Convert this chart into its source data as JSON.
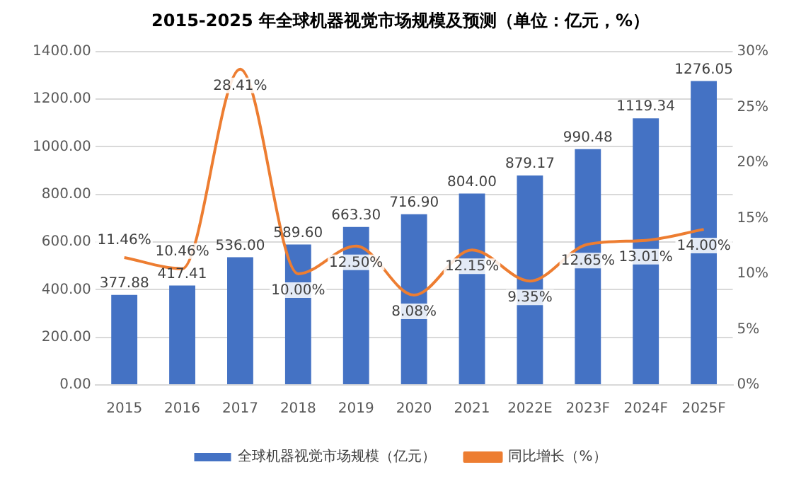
{
  "chart_data": {
    "type": "bar",
    "title": "2015-2025 年全球机器视觉市场规模及预测（单位：亿元，%）",
    "categories": [
      "2015",
      "2016",
      "2017",
      "2018",
      "2019",
      "2020",
      "2021",
      "2022E",
      "2023F",
      "2024F",
      "2025F"
    ],
    "series": [
      {
        "name": "全球机器视觉市场规模（亿元）",
        "color": "#4472c4",
        "values": [
          377.88,
          417.41,
          536.0,
          589.6,
          663.3,
          716.9,
          804.0,
          879.17,
          990.48,
          1119.34,
          1276.05
        ],
        "value_labels": [
          "377.88",
          "417.41",
          "536.00",
          "589.60",
          "663.30",
          "716.90",
          "804.00",
          "879.17",
          "990.48",
          "1119.34",
          "1276.05"
        ]
      },
      {
        "name": "同比增长（%）",
        "type": "line",
        "axis": "y2",
        "color": "#ed7d31",
        "marker": "none",
        "values": [
          11.46,
          10.46,
          28.41,
          10.0,
          12.5,
          8.08,
          12.15,
          9.35,
          12.65,
          13.01,
          14.0
        ],
        "value_labels": [
          "11.46%",
          "10.46%",
          "28.41%",
          "10.00%",
          "12.50%",
          "8.08%",
          "12.15%",
          "9.35%",
          "12.65%",
          "13.01%",
          "14.00%"
        ]
      }
    ],
    "ylim": [
      0,
      1400
    ],
    "yticks": [
      {
        "value": 0,
        "label": "0.00"
      },
      {
        "value": 200,
        "label": "200.00"
      },
      {
        "value": 400,
        "label": "400.00"
      },
      {
        "value": 600,
        "label": "600.00"
      },
      {
        "value": 800,
        "label": "800.00"
      },
      {
        "value": 1000,
        "label": "1000.00"
      },
      {
        "value": 1200,
        "label": "1200.00"
      },
      {
        "value": 1400,
        "label": "1400.00"
      }
    ],
    "y2lim": [
      0,
      30
    ],
    "y2ticks": [
      {
        "value": 0,
        "label": "0%"
      },
      {
        "value": 5,
        "label": "5%"
      },
      {
        "value": 10,
        "label": "10%"
      },
      {
        "value": 15,
        "label": "15%"
      },
      {
        "value": 20,
        "label": "20%"
      },
      {
        "value": 25,
        "label": "25%"
      },
      {
        "value": 30,
        "label": "30%"
      }
    ],
    "grid": "y",
    "legend": "bottom"
  }
}
